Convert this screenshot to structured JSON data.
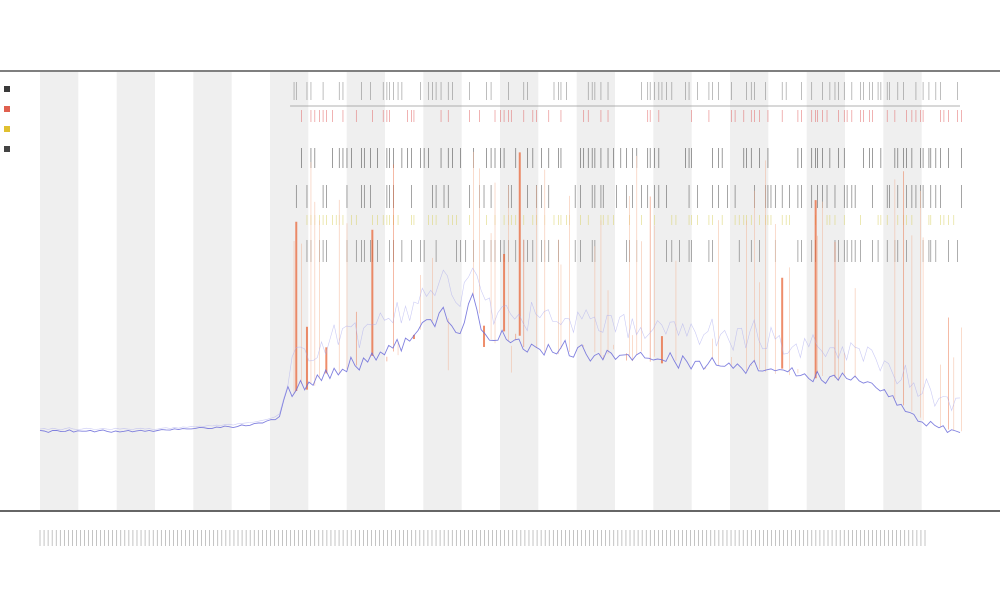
{
  "header": {
    "title": "",
    "subtitle_1": "",
    "subtitle_2": ""
  },
  "chart_data": {
    "type": "line",
    "title": "",
    "xlabel": "",
    "ylabel": "",
    "grid": false,
    "legend_position": "top-left",
    "legend": [
      {
        "name": "",
        "color": "#3a3a3a"
      },
      {
        "name": "",
        "color": "#e0604f"
      },
      {
        "name": "",
        "color": "#e0c030"
      },
      {
        "name": "",
        "color": "#444444"
      }
    ],
    "x_tick_count": 220,
    "x_range": [
      0,
      240
    ],
    "y_range": [
      0,
      100
    ],
    "stripe_count": 24,
    "data_start_index": 60,
    "baseline_series": {
      "name": "",
      "color": "#6b6bd9",
      "values": [
        2.0,
        2.1,
        1.9,
        2.2,
        2.0,
        1.8,
        2.1,
        2.3,
        2.0,
        1.9,
        2.0,
        2.2,
        2.1,
        1.9,
        2.0,
        2.1,
        2.0,
        1.9,
        2.2,
        2.0,
        2.1,
        2.0,
        1.9,
        2.1,
        2.2,
        2.0,
        2.1,
        1.9,
        2.0,
        2.2,
        2.3,
        2.1,
        2.4,
        2.2,
        2.5,
        2.4,
        2.6,
        2.5,
        2.7,
        2.6,
        2.8,
        2.7,
        2.9,
        2.8,
        3.0,
        3.1,
        2.9,
        3.2,
        3.3,
        3.4,
        3.5,
        3.6,
        3.8,
        4.0,
        4.2,
        4.5,
        4.8,
        5.5,
        9.0,
        12.0,
        10.5,
        11.2,
        12.8,
        11.5,
        13.0,
        12.4,
        14.1,
        13.6,
        15.2,
        14.0,
        16.5,
        15.1,
        17.0,
        16.2,
        18.4,
        17.0,
        16.8,
        18.9,
        17.5,
        19.2,
        18.0,
        20.1,
        19.0,
        21.4,
        20.2,
        22.5,
        21.0,
        23.6,
        22.1,
        24.0,
        25.2,
        26.8,
        28.0,
        27.1,
        26.0,
        28.5,
        29.4,
        27.8,
        26.5,
        25.1,
        24.8,
        27.3,
        30.2,
        32.5,
        28.9,
        26.1,
        24.3,
        23.0,
        22.1,
        23.5,
        24.8,
        22.6,
        21.5,
        22.9,
        23.8,
        21.2,
        20.6,
        22.3,
        21.0,
        20.2,
        19.8,
        21.5,
        20.4,
        19.6,
        20.8,
        21.9,
        20.1,
        19.2,
        20.5,
        21.3,
        19.9,
        18.8,
        20.0,
        19.1,
        18.4,
        19.6,
        20.7,
        19.3,
        18.5,
        19.8,
        18.9,
        18.0,
        19.4,
        20.2,
        18.6,
        17.9,
        19.0,
        18.2,
        17.5,
        18.8,
        19.5,
        18.1,
        17.2,
        18.4,
        17.7,
        16.9,
        18.0,
        17.3,
        16.6,
        17.8,
        18.5,
        17.1,
        16.4,
        17.6,
        16.8,
        16.0,
        17.2,
        16.5,
        15.8,
        16.9,
        17.6,
        16.2,
        15.5,
        16.7,
        15.9,
        15.1,
        16.3,
        15.6,
        14.8,
        15.9,
        15.2,
        14.5,
        15.7,
        14.9,
        14.1,
        15.3,
        14.6,
        13.8,
        14.9,
        14.2,
        13.5,
        14.6,
        13.9,
        13.1,
        14.2,
        13.4,
        12.7,
        13.8,
        13.0,
        12.2,
        11.5,
        10.8,
        10.1,
        9.4,
        8.7,
        7.9,
        7.2,
        6.5,
        5.8,
        5.1,
        4.5,
        4.0,
        3.6,
        3.2,
        2.9,
        2.6,
        2.4,
        2.2,
        2.1,
        2.0
      ]
    }
  }
}
